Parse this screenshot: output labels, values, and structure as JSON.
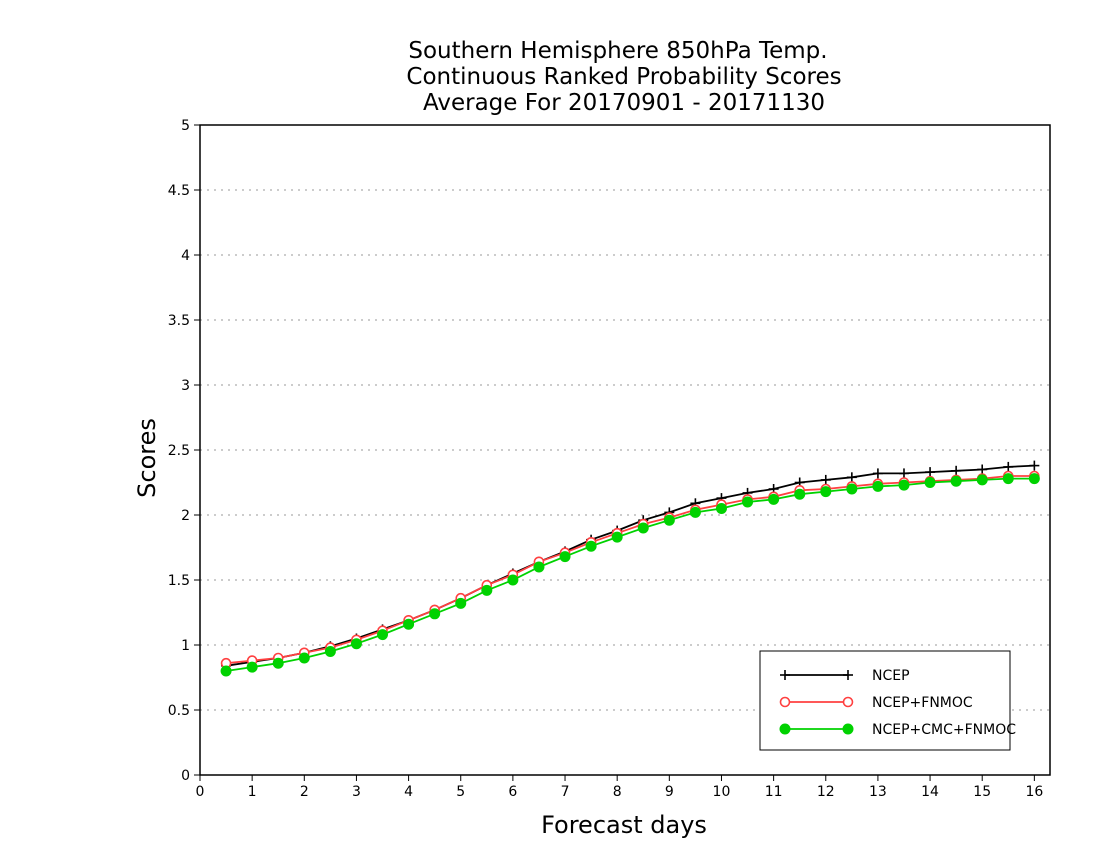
{
  "chart_data": {
    "type": "line",
    "title_lines": [
      "Southern Hemisphere 850hPa Temp.",
      "Continuous Ranked Probability Scores",
      "Average For 20170901 - 20171130"
    ],
    "xlabel": "Forecast days",
    "ylabel": "Scores",
    "xlim": [
      0,
      16.3
    ],
    "ylim": [
      0,
      5
    ],
    "xticks": [
      0,
      1,
      2,
      3,
      4,
      5,
      6,
      7,
      8,
      9,
      10,
      11,
      12,
      13,
      14,
      15,
      16
    ],
    "yticks": [
      0,
      0.5,
      1,
      1.5,
      2,
      2.5,
      3,
      3.5,
      4,
      4.5,
      5
    ],
    "ytick_labels": [
      "0",
      "0.5",
      "1",
      "1.5",
      "2",
      "2.5",
      "3",
      "3.5",
      "4",
      "4.5",
      "5"
    ],
    "grid": true,
    "legend_position": "bottom-right",
    "x": [
      0.5,
      1,
      1.5,
      2,
      2.5,
      3,
      3.5,
      4,
      4.5,
      5,
      5.5,
      6,
      6.5,
      7,
      7.5,
      8,
      8.5,
      9,
      9.5,
      10,
      10.5,
      11,
      11.5,
      12,
      12.5,
      13,
      13.5,
      14,
      14.5,
      15,
      15.5,
      16
    ],
    "series": [
      {
        "name": "NCEP",
        "color": "#000000",
        "marker": "plus",
        "values": [
          0.84,
          0.87,
          0.9,
          0.94,
          0.99,
          1.05,
          1.12,
          1.19,
          1.27,
          1.36,
          1.46,
          1.55,
          1.64,
          1.72,
          1.81,
          1.88,
          1.96,
          2.02,
          2.09,
          2.13,
          2.17,
          2.2,
          2.25,
          2.27,
          2.29,
          2.32,
          2.32,
          2.33,
          2.34,
          2.35,
          2.37,
          2.38
        ]
      },
      {
        "name": "NCEP+FNMOC",
        "color": "#ff4040",
        "marker": "open-circle",
        "values": [
          0.86,
          0.88,
          0.9,
          0.94,
          0.98,
          1.04,
          1.11,
          1.19,
          1.27,
          1.36,
          1.46,
          1.54,
          1.64,
          1.71,
          1.79,
          1.86,
          1.93,
          1.98,
          2.04,
          2.08,
          2.12,
          2.14,
          2.19,
          2.2,
          2.22,
          2.24,
          2.25,
          2.26,
          2.27,
          2.28,
          2.3,
          2.3
        ]
      },
      {
        "name": "NCEP+CMC+FNMOC",
        "color": "#00d200",
        "marker": "filled-circle",
        "values": [
          0.8,
          0.83,
          0.86,
          0.9,
          0.95,
          1.01,
          1.08,
          1.16,
          1.24,
          1.32,
          1.42,
          1.5,
          1.6,
          1.68,
          1.76,
          1.83,
          1.9,
          1.96,
          2.02,
          2.05,
          2.1,
          2.12,
          2.16,
          2.18,
          2.2,
          2.22,
          2.23,
          2.25,
          2.26,
          2.27,
          2.28,
          2.28
        ]
      }
    ]
  }
}
